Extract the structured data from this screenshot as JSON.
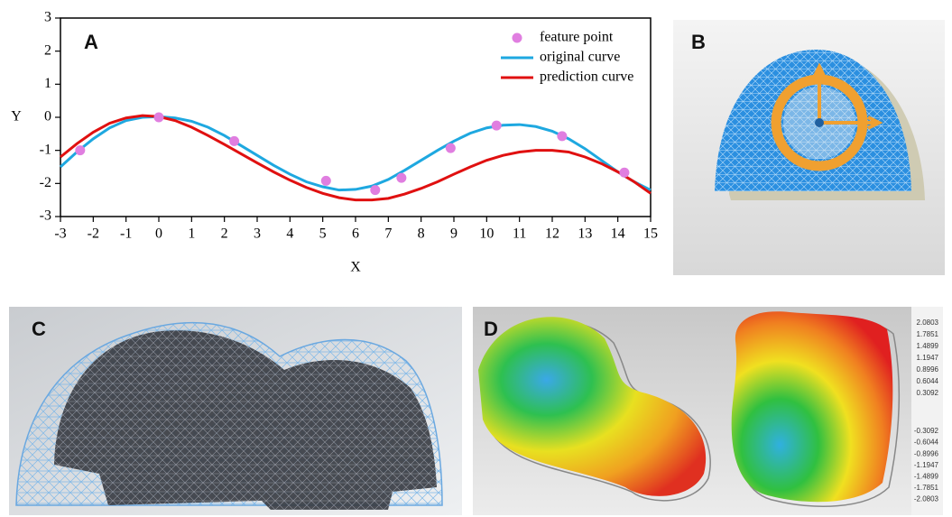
{
  "chart_data": {
    "type": "line",
    "panel_label": "A",
    "xlabel": "X",
    "ylabel": "Y",
    "xlim": [
      -3,
      15
    ],
    "ylim": [
      -3,
      3
    ],
    "xticks": [
      -3,
      -2,
      -1,
      0,
      1,
      2,
      3,
      4,
      5,
      6,
      7,
      8,
      9,
      10,
      11,
      12,
      13,
      14,
      15
    ],
    "yticks": [
      -3,
      -2,
      -1,
      0,
      1,
      2,
      3
    ],
    "legend": "upper right",
    "series": [
      {
        "name": "feature point",
        "type": "scatter",
        "color": "#e07ee0",
        "x": [
          -2.4,
          0,
          2.3,
          5.1,
          6.6,
          7.4,
          8.9,
          10.3,
          12.3,
          14.2
        ],
        "values": [
          -1.0,
          0.0,
          -0.72,
          -1.92,
          -2.2,
          -1.83,
          -0.93,
          -0.25,
          -0.57,
          -1.67
        ]
      },
      {
        "name": "original curve",
        "type": "line",
        "color": "#1ea8e0",
        "x": [
          -3,
          -2.5,
          -2,
          -1.5,
          -1,
          -0.5,
          0,
          0.5,
          1,
          1.5,
          2,
          2.5,
          3,
          3.5,
          4,
          4.5,
          5,
          5.5,
          6,
          6.5,
          7,
          7.5,
          8,
          8.5,
          9,
          9.5,
          10,
          10.5,
          11,
          11.5,
          12,
          12.5,
          13,
          13.5,
          14,
          14.5,
          15
        ],
        "values": [
          -1.5,
          -1.05,
          -0.65,
          -0.32,
          -0.1,
          0.0,
          0.02,
          -0.02,
          -0.12,
          -0.3,
          -0.55,
          -0.85,
          -1.15,
          -1.45,
          -1.72,
          -1.95,
          -2.1,
          -2.2,
          -2.18,
          -2.08,
          -1.88,
          -1.6,
          -1.3,
          -1.0,
          -0.72,
          -0.48,
          -0.32,
          -0.24,
          -0.22,
          -0.28,
          -0.42,
          -0.65,
          -0.95,
          -1.3,
          -1.65,
          -1.95,
          -2.2
        ]
      },
      {
        "name": "prediction curve",
        "type": "line",
        "color": "#e01010",
        "x": [
          -3,
          -2.5,
          -2,
          -1.5,
          -1,
          -0.5,
          0,
          0.5,
          1,
          1.5,
          2,
          2.5,
          3,
          3.5,
          4,
          4.5,
          5,
          5.5,
          6,
          6.5,
          7,
          7.5,
          8,
          8.5,
          9,
          9.5,
          10,
          10.5,
          11,
          11.5,
          12,
          12.5,
          13,
          13.5,
          14,
          14.5,
          15
        ],
        "values": [
          -1.2,
          -0.8,
          -0.45,
          -0.18,
          -0.02,
          0.05,
          0.02,
          -0.1,
          -0.3,
          -0.55,
          -0.82,
          -1.1,
          -1.38,
          -1.65,
          -1.9,
          -2.12,
          -2.3,
          -2.43,
          -2.5,
          -2.5,
          -2.45,
          -2.32,
          -2.15,
          -1.95,
          -1.72,
          -1.5,
          -1.3,
          -1.15,
          -1.05,
          -1.0,
          -1.0,
          -1.05,
          -1.2,
          -1.4,
          -1.65,
          -1.95,
          -2.3
        ]
      }
    ]
  },
  "panels": {
    "B": {
      "label": "B"
    },
    "C": {
      "label": "C"
    },
    "D": {
      "label": "D",
      "scale_labels": [
        "2.0803",
        "1.7851",
        "1.4899",
        "1.1947",
        "0.8996",
        "0.6044",
        "0.3092",
        "-0.3092",
        "-0.6044",
        "-0.8996",
        "-1.1947",
        "-1.4899",
        "-1.7851",
        "-2.0803"
      ]
    }
  }
}
